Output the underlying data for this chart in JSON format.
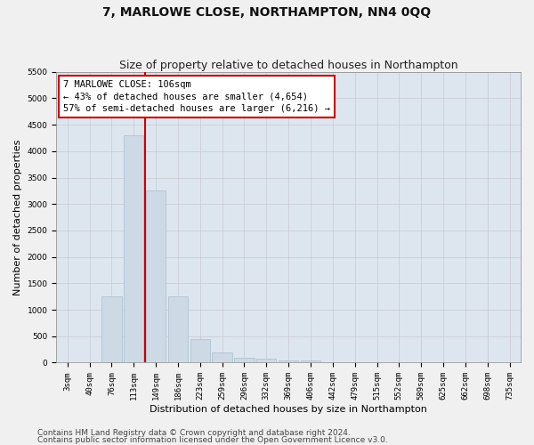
{
  "title": "7, MARLOWE CLOSE, NORTHAMPTON, NN4 0QQ",
  "subtitle": "Size of property relative to detached houses in Northampton",
  "xlabel": "Distribution of detached houses by size in Northampton",
  "ylabel": "Number of detached properties",
  "footer1": "Contains HM Land Registry data © Crown copyright and database right 2024.",
  "footer2": "Contains public sector information licensed under the Open Government Licence v3.0.",
  "categories": [
    "3sqm",
    "40sqm",
    "76sqm",
    "113sqm",
    "149sqm",
    "186sqm",
    "223sqm",
    "259sqm",
    "296sqm",
    "332sqm",
    "369sqm",
    "406sqm",
    "442sqm",
    "479sqm",
    "515sqm",
    "552sqm",
    "589sqm",
    "625sqm",
    "662sqm",
    "698sqm",
    "735sqm"
  ],
  "values": [
    0,
    0,
    1250,
    4300,
    3250,
    1250,
    450,
    200,
    100,
    75,
    50,
    50,
    0,
    0,
    0,
    0,
    0,
    0,
    0,
    0,
    0
  ],
  "bar_color": "#cdd9e5",
  "bar_edge_color": "#a8bfcf",
  "vline_x": 3.5,
  "vline_color": "#cc0000",
  "annotation_text": "7 MARLOWE CLOSE: 106sqm\n← 43% of detached houses are smaller (4,654)\n57% of semi-detached houses are larger (6,216) →",
  "annotation_box_color": "#ffffff",
  "annotation_box_edge": "#cc0000",
  "ylim": [
    0,
    5500
  ],
  "yticks": [
    0,
    500,
    1000,
    1500,
    2000,
    2500,
    3000,
    3500,
    4000,
    4500,
    5000,
    5500
  ],
  "grid_color": "#c8c8d0",
  "background_color": "#dde6ef",
  "figure_color": "#f0f0f0",
  "title_fontsize": 10,
  "subtitle_fontsize": 9,
  "annotation_fontsize": 7.5,
  "tick_fontsize": 6.5,
  "label_fontsize": 8,
  "ylabel_fontsize": 8,
  "footer_fontsize": 6.5
}
